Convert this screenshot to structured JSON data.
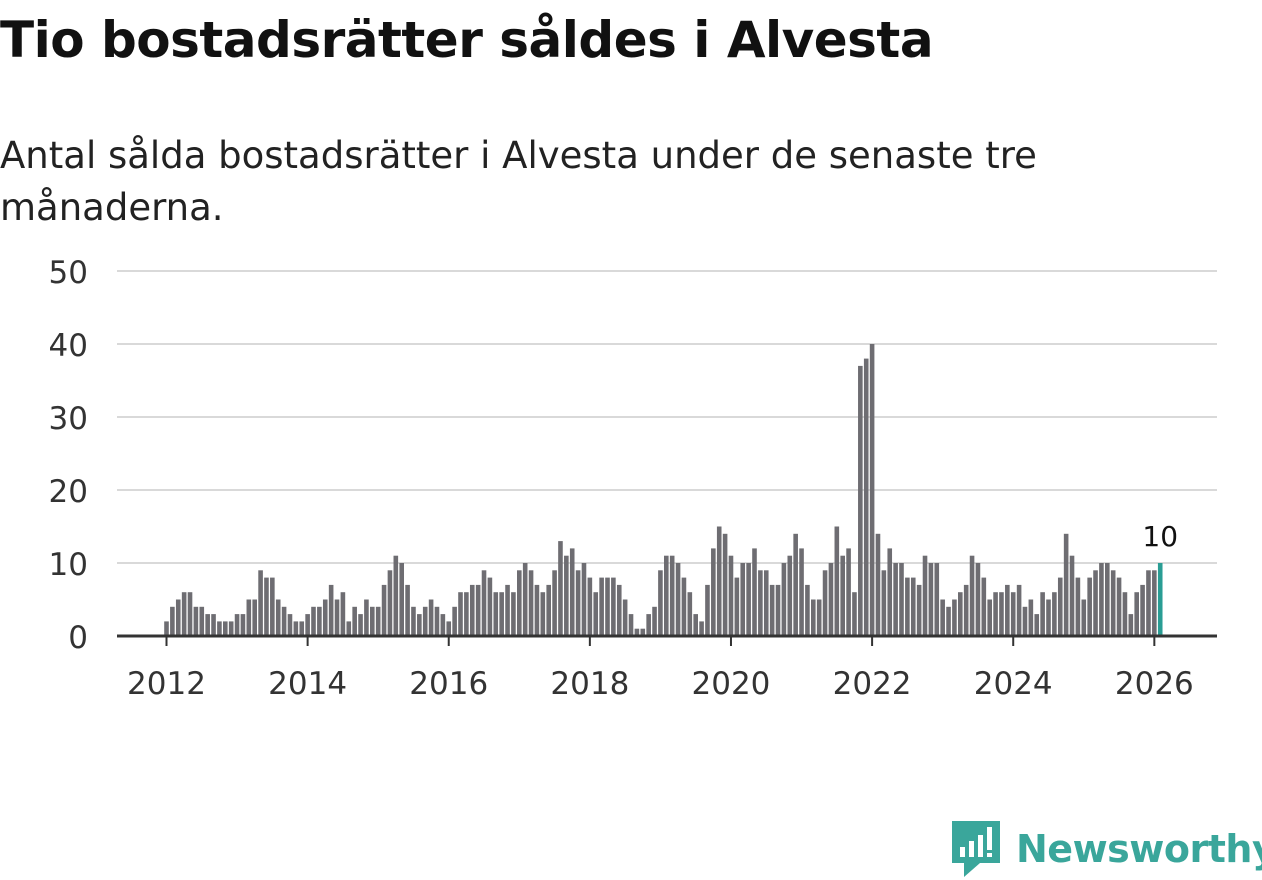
{
  "header": {
    "title": "Tio bostadsrätter såldes i Alvesta",
    "subtitle": "Antal sålda bostadsrätter i Alvesta under de senaste tre månaderna."
  },
  "brand": {
    "name": "Newsworthy",
    "color": "#3aa69b"
  },
  "chart_data": {
    "type": "bar",
    "title": "Tio bostadsrätter såldes i Alvesta",
    "subtitle": "Antal sålda bostadsrätter i Alvesta under de senaste tre månaderna.",
    "xlabel": "",
    "ylabel": "",
    "ylim": [
      0,
      50
    ],
    "yticks": [
      0,
      10,
      20,
      30,
      40,
      50
    ],
    "xticks": [
      "2012",
      "2014",
      "2016",
      "2018",
      "2020",
      "2022",
      "2024",
      "2026"
    ],
    "grid": true,
    "start": "2012-01",
    "frequency": "monthly",
    "values": [
      2,
      4,
      5,
      6,
      6,
      4,
      4,
      3,
      3,
      2,
      2,
      2,
      3,
      3,
      5,
      5,
      9,
      8,
      8,
      5,
      4,
      3,
      2,
      2,
      3,
      4,
      4,
      5,
      7,
      5,
      6,
      2,
      4,
      3,
      5,
      4,
      4,
      7,
      9,
      11,
      10,
      7,
      4,
      3,
      4,
      5,
      4,
      3,
      2,
      4,
      6,
      6,
      7,
      7,
      9,
      8,
      6,
      6,
      7,
      6,
      9,
      10,
      9,
      7,
      6,
      7,
      9,
      13,
      11,
      12,
      9,
      10,
      8,
      6,
      8,
      8,
      8,
      7,
      5,
      3,
      1,
      1,
      3,
      4,
      9,
      11,
      11,
      10,
      8,
      6,
      3,
      2,
      7,
      12,
      15,
      14,
      11,
      8,
      10,
      10,
      12,
      9,
      9,
      7,
      7,
      10,
      11,
      14,
      12,
      7,
      5,
      5,
      9,
      10,
      15,
      11,
      12,
      6,
      37,
      38,
      40,
      14,
      9,
      12,
      10,
      10,
      8,
      8,
      7,
      11,
      10,
      10,
      5,
      4,
      5,
      6,
      7,
      11,
      10,
      8,
      5,
      6,
      6,
      7,
      6,
      7,
      4,
      5,
      3,
      6,
      5,
      6,
      8,
      14,
      11,
      8,
      5,
      8,
      9,
      10,
      10,
      9,
      8,
      6,
      3,
      6,
      7,
      9,
      9,
      10
    ],
    "bar_color": "#6e6d72",
    "highlight_color": "#2a9d94",
    "highlight_label": "10"
  }
}
